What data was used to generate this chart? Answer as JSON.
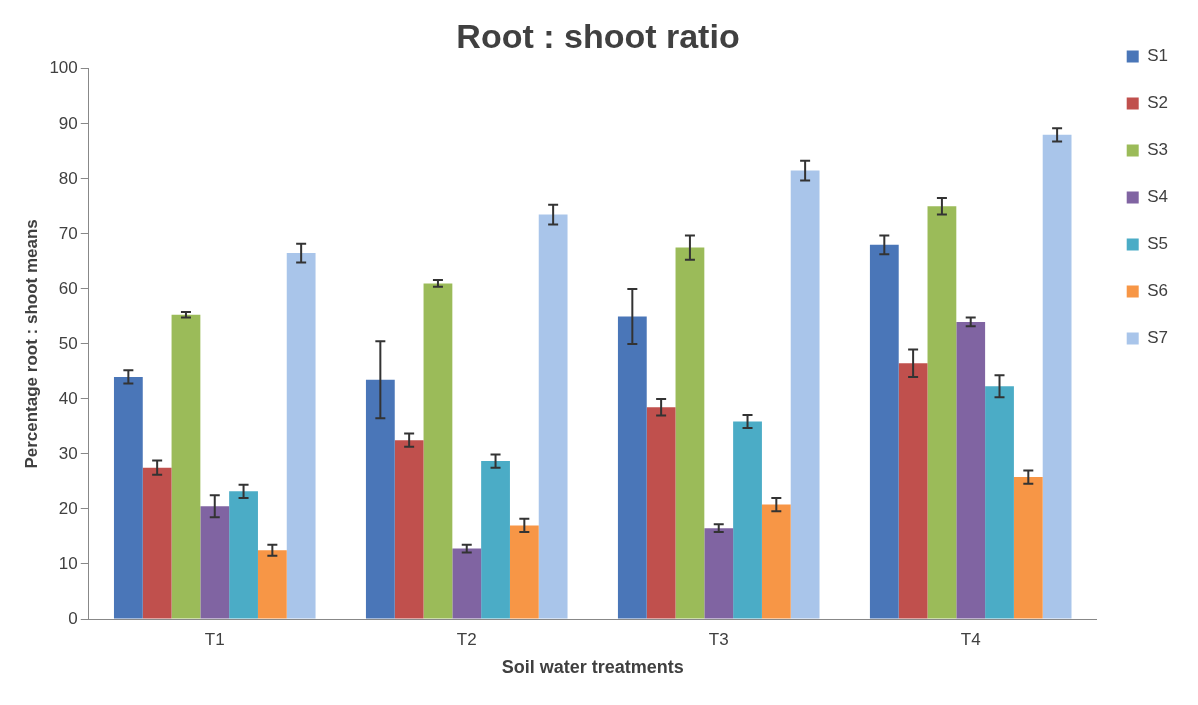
{
  "chart_data": {
    "type": "bar",
    "title": "Root : shoot ratio",
    "xlabel": "Soil water treatments",
    "ylabel": "Percentage root : shoot means",
    "categories": [
      "T1",
      "T2",
      "T3",
      "T4"
    ],
    "series": [
      {
        "name": "S1",
        "color": "#4a76b8",
        "values": [
          44,
          43.5,
          55,
          68
        ],
        "errors": [
          1.2,
          7,
          5,
          1.7
        ]
      },
      {
        "name": "S2",
        "color": "#c0504d",
        "values": [
          27.5,
          32.5,
          38.5,
          46.5
        ],
        "errors": [
          1.3,
          1.2,
          1.5,
          2.5
        ]
      },
      {
        "name": "S3",
        "color": "#9bbb59",
        "values": [
          55.3,
          61,
          67.5,
          75
        ],
        "errors": [
          0.5,
          0.6,
          2.2,
          1.5
        ]
      },
      {
        "name": "S4",
        "color": "#8064a2",
        "values": [
          20.5,
          12.8,
          16.5,
          54
        ],
        "errors": [
          2,
          0.7,
          0.7,
          0.8
        ]
      },
      {
        "name": "S5",
        "color": "#4bacc6",
        "values": [
          23.2,
          28.7,
          35.9,
          42.3
        ],
        "errors": [
          1.2,
          1.2,
          1.2,
          2
        ]
      },
      {
        "name": "S6",
        "color": "#f79646",
        "values": [
          12.5,
          17,
          20.8,
          25.8
        ],
        "errors": [
          1,
          1.2,
          1.2,
          1.2
        ]
      },
      {
        "name": "S7",
        "color": "#a9c5ea",
        "values": [
          66.5,
          73.5,
          81.5,
          88
        ],
        "errors": [
          1.7,
          1.8,
          1.8,
          1.2
        ]
      }
    ],
    "ylim": [
      0,
      100
    ],
    "yticks": [
      0,
      10,
      20,
      30,
      40,
      50,
      60,
      70,
      80,
      90,
      100
    ],
    "grid": false,
    "legend": "right"
  }
}
